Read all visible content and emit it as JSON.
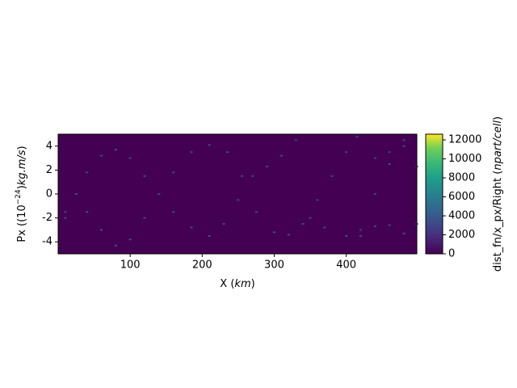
{
  "chart_data": {
    "type": "heatmap",
    "x_label": [
      "X (",
      "km",
      ")"
    ],
    "y_label": [
      "Px ((10",
      "−24",
      ")",
      "kg.m/s",
      ")"
    ],
    "colorbar_label": [
      "dist_fn/x_px/Right (",
      "npart/cell",
      ")"
    ],
    "colormap": "viridis",
    "xlim": [
      0,
      498
    ],
    "xticks": [
      100,
      200,
      300,
      400
    ],
    "ylim": [
      -5,
      5
    ],
    "yticks": [
      -4,
      -2,
      0,
      2,
      4
    ],
    "clim": [
      0,
      12600
    ],
    "cticks": [
      0,
      2000,
      4000,
      6000,
      8000,
      10000,
      12000
    ],
    "x": [
      10,
      25,
      40,
      60,
      80,
      100,
      120,
      140,
      160,
      185,
      210,
      230,
      250,
      270,
      290,
      310,
      330,
      10,
      40,
      60,
      80,
      100,
      120,
      140,
      160,
      185,
      210,
      235,
      255,
      275,
      300,
      320,
      340,
      360,
      380,
      400,
      415,
      350,
      370,
      400,
      420,
      440,
      460,
      480,
      498,
      420,
      440,
      460,
      480,
      440,
      460,
      480,
      498
    ],
    "y": [
      -1.5,
      0,
      1.8,
      3.2,
      3.7,
      3,
      1.5,
      0,
      -1.5,
      -2.8,
      -3.5,
      -2.5,
      -0.5,
      1.5,
      2.3,
      3.2,
      4.5,
      -2,
      -1.5,
      -3,
      -4.3,
      -3.8,
      -2,
      0,
      1.8,
      3.5,
      4.1,
      3.5,
      1.5,
      -1.5,
      -3.2,
      -3.4,
      -2.5,
      -0.5,
      1.5,
      3.5,
      4.8,
      -2,
      -2.8,
      -3.5,
      -3.5,
      -2.7,
      -2.6,
      -3.3,
      -2.5,
      -3,
      0,
      2.5,
      4.5,
      3,
      3.5,
      4,
      2.3
    ],
    "values": [
      3000,
      3200,
      2800,
      3000,
      3500,
      2900,
      3100,
      2700,
      3000,
      3300,
      3600,
      3000,
      2800,
      3100,
      2900,
      3000,
      2700,
      3000,
      3300,
      3400,
      3800,
      3500,
      3000,
      2800,
      3100,
      3000,
      3200,
      3000,
      2900,
      3100,
      3400,
      3300,
      3000,
      2800,
      2900,
      3000,
      2700,
      3000,
      3200,
      3500,
      3300,
      3000,
      3100,
      3400,
      3000,
      2800,
      2900,
      3000,
      3100,
      2700,
      2800,
      2900,
      3000
    ]
  }
}
